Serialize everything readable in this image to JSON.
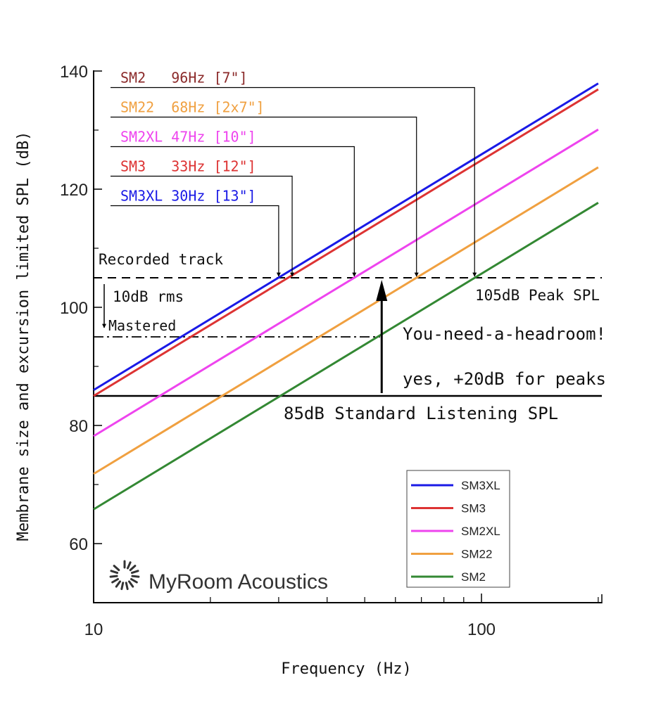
{
  "chart_data": {
    "type": "line",
    "title": "",
    "xlabel": "Frequency (Hz)",
    "ylabel": "Membrane size and excursion limited SPL (dB)",
    "xscale": "log",
    "xlim": [
      10,
      200
    ],
    "ylim": [
      50,
      140
    ],
    "xticks": [
      {
        "value": 10,
        "label": "10"
      },
      {
        "value": 100,
        "label": "100"
      }
    ],
    "yticks": [
      {
        "value": 60,
        "label": "60"
      },
      {
        "value": 80,
        "label": "80"
      },
      {
        "value": 100,
        "label": "100"
      },
      {
        "value": 120,
        "label": "120"
      },
      {
        "value": 140,
        "label": "140"
      }
    ],
    "grid": false,
    "legend_position": "bottom-right",
    "series": [
      {
        "name": "SM3XL",
        "color": "#1a1ae6",
        "x": [
          10,
          200
        ],
        "y": [
          86.0,
          137.9
        ]
      },
      {
        "name": "SM3",
        "color": "#dd3333",
        "x": [
          10,
          200
        ],
        "y": [
          85.0,
          136.9
        ]
      },
      {
        "name": "SM2XL",
        "color": "#ee44ee",
        "x": [
          10,
          200
        ],
        "y": [
          78.2,
          130.1
        ]
      },
      {
        "name": "SM22",
        "color": "#f0a040",
        "x": [
          10,
          200
        ],
        "y": [
          71.8,
          123.7
        ]
      },
      {
        "name": "SM2",
        "color": "#338833",
        "x": [
          10,
          200
        ],
        "y": [
          65.8,
          117.7
        ]
      }
    ],
    "reference_lines": [
      {
        "id": "peak",
        "y": 105,
        "style": "dashed",
        "label": "105dB Peak SPL"
      },
      {
        "id": "mastered",
        "y": 95,
        "style": "dashdot",
        "label": "Mastered"
      },
      {
        "id": "standard",
        "y": 85,
        "style": "solid",
        "label": "85dB Standard Listening SPL"
      }
    ],
    "annotations": {
      "recorded_track": "Recorded track",
      "rms": "10dB rms",
      "headroom": "You-need-a-headroom!",
      "peaks": "yes, +20dB for peaks"
    },
    "speaker_labels": [
      {
        "name": "SM2",
        "text": "SM2   96Hz [7\"]",
        "color": "#8b2a2a",
        "freq": 96,
        "label_y": 137.2
      },
      {
        "name": "SM22",
        "text": "SM22  68Hz [2x7\"]",
        "color": "#f0a040",
        "freq": 68,
        "label_y": 132.2
      },
      {
        "name": "SM2XL",
        "text": "SM2XL 47Hz [10\"]",
        "color": "#ee44ee",
        "freq": 47,
        "label_y": 127.2
      },
      {
        "name": "SM3",
        "text": "SM3   33Hz [12\"]",
        "color": "#dd3333",
        "freq": 32.5,
        "label_y": 122.2
      },
      {
        "name": "SM3XL",
        "text": "SM3XL 30Hz [13\"]",
        "color": "#1a1ae6",
        "freq": 30,
        "label_y": 117.2
      }
    ]
  },
  "logo": {
    "text": "MyRoom Acoustics",
    "icon": "sunburst-icon"
  }
}
